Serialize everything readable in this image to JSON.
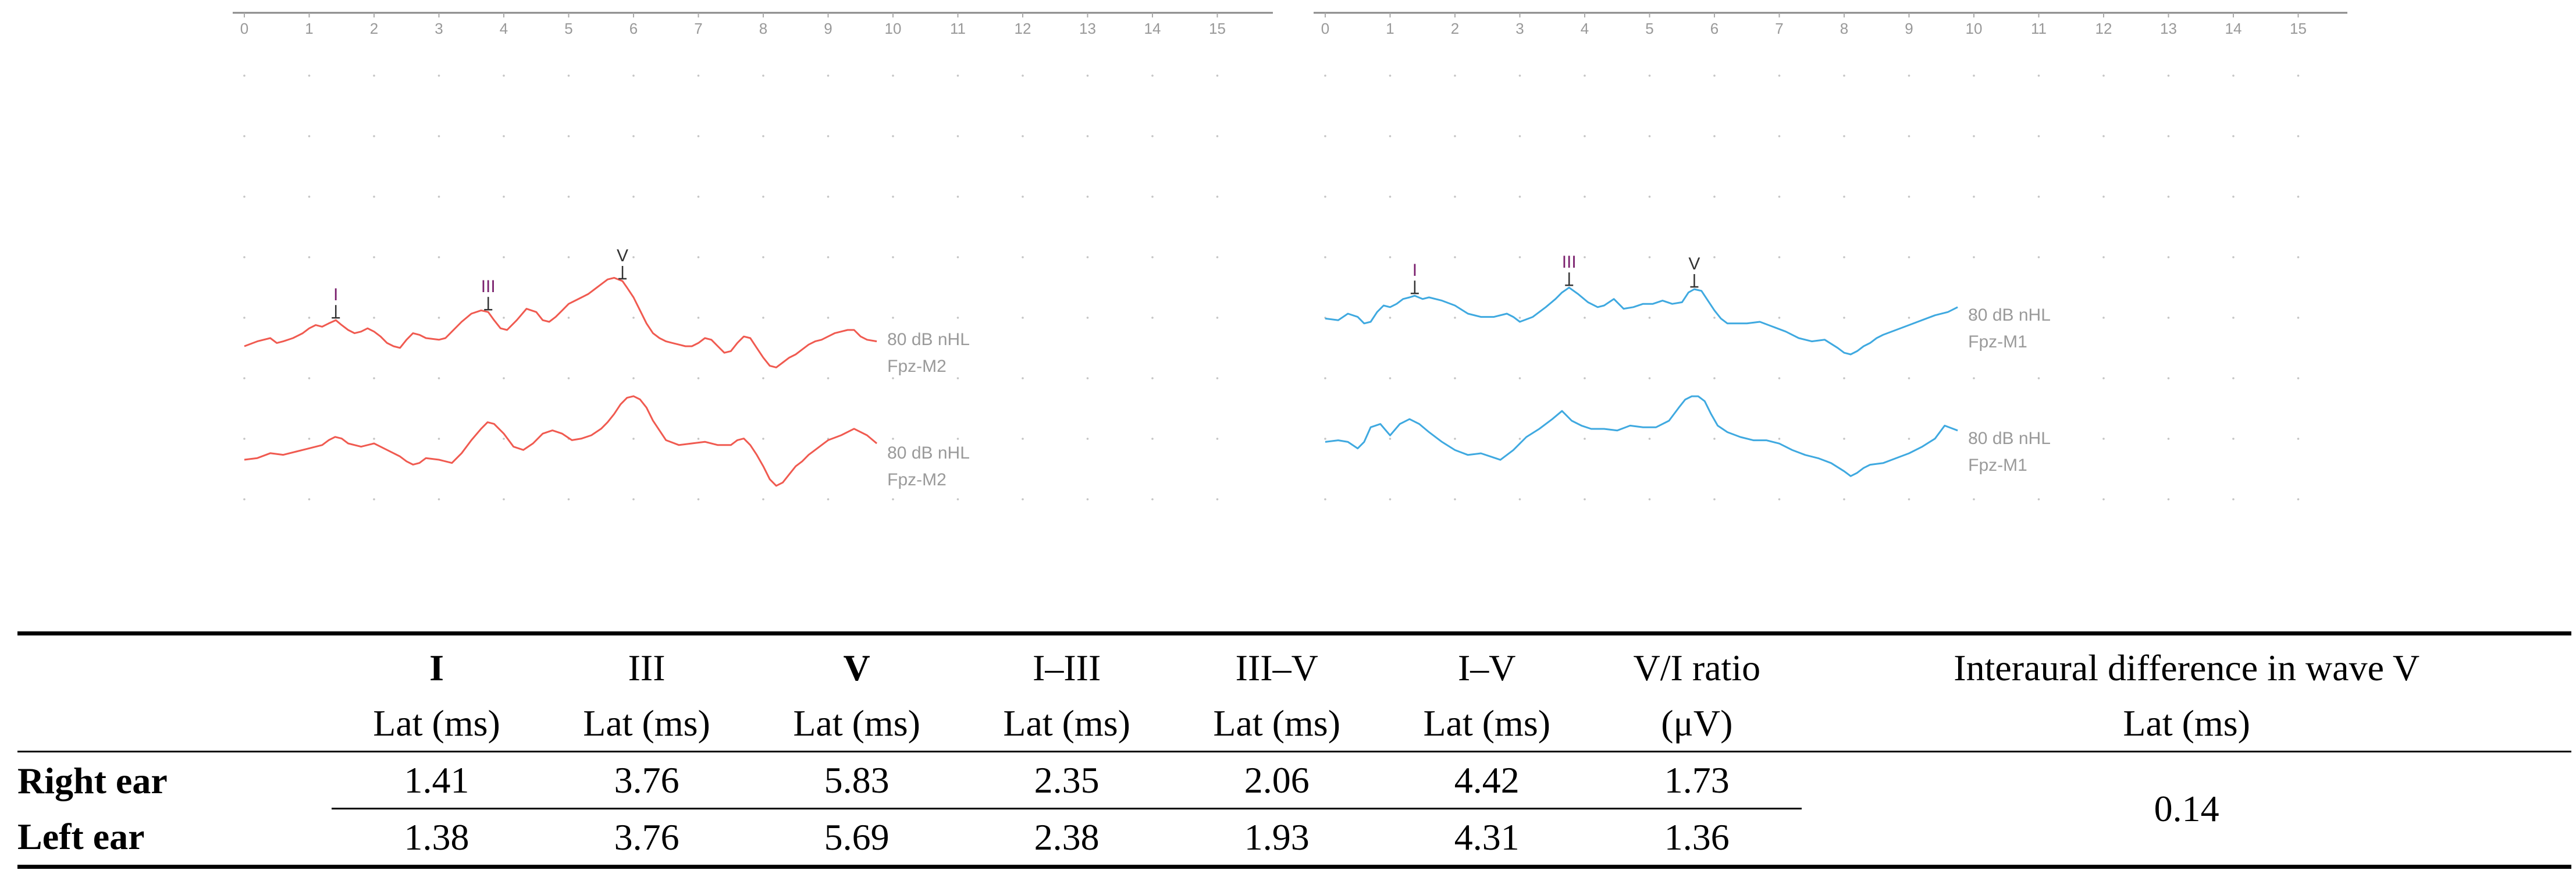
{
  "chart_data": [
    {
      "type": "line",
      "ear": "Right ear",
      "color": "#f05a50",
      "x_axis": {
        "min": 0,
        "max": 16,
        "ticks": [
          0,
          1,
          2,
          3,
          4,
          5,
          6,
          7,
          8,
          9,
          10,
          11,
          12,
          13,
          14,
          15
        ],
        "unit": "ms"
      },
      "series": [
        {
          "name": "80 dB nHL Fpz-M2 (trace 1)",
          "label_lines": [
            "80 dB nHL",
            "Fpz-M2"
          ],
          "x": [
            0.0,
            0.2,
            0.4,
            0.5,
            0.6,
            0.75,
            0.9,
            1.0,
            1.1,
            1.2,
            1.3,
            1.41,
            1.5,
            1.6,
            1.7,
            1.8,
            1.9,
            2.0,
            2.1,
            2.2,
            2.3,
            2.4,
            2.5,
            2.6,
            2.7,
            2.8,
            3.0,
            3.1,
            3.2,
            3.35,
            3.5,
            3.65,
            3.76,
            3.85,
            3.95,
            4.05,
            4.2,
            4.35,
            4.5,
            4.6,
            4.7,
            4.8,
            4.9,
            5.0,
            5.1,
            5.2,
            5.3,
            5.4,
            5.5,
            5.6,
            5.7,
            5.83,
            5.9,
            6.0,
            6.1,
            6.2,
            6.3,
            6.4,
            6.5,
            6.6,
            6.7,
            6.8,
            6.9,
            7.0,
            7.1,
            7.2,
            7.3,
            7.4,
            7.5,
            7.6,
            7.7,
            7.8,
            7.9,
            8.0,
            8.1,
            8.2,
            8.3,
            8.4,
            8.5,
            8.6,
            8.7,
            8.8,
            8.9,
            9.0,
            9.1,
            9.2,
            9.3,
            9.4,
            9.5,
            9.6,
            9.75
          ],
          "y": [
            0.0,
            0.3,
            0.5,
            0.2,
            0.3,
            0.5,
            0.8,
            1.1,
            1.3,
            1.2,
            1.4,
            1.6,
            1.3,
            1.0,
            0.8,
            0.9,
            1.1,
            0.9,
            0.6,
            0.2,
            0.0,
            -0.1,
            0.4,
            0.8,
            0.7,
            0.5,
            0.4,
            0.5,
            0.9,
            1.5,
            2.0,
            2.2,
            2.1,
            1.6,
            1.1,
            1.0,
            1.6,
            2.3,
            2.1,
            1.6,
            1.5,
            1.8,
            2.2,
            2.6,
            2.8,
            3.0,
            3.2,
            3.5,
            3.8,
            4.1,
            4.2,
            4.0,
            3.6,
            3.0,
            2.2,
            1.4,
            0.8,
            0.5,
            0.3,
            0.2,
            0.1,
            0.0,
            0.0,
            0.2,
            0.5,
            0.4,
            0.0,
            -0.4,
            -0.3,
            0.2,
            0.6,
            0.5,
            -0.1,
            -0.7,
            -1.2,
            -1.3,
            -1.0,
            -0.7,
            -0.5,
            -0.2,
            0.1,
            0.3,
            0.4,
            0.6,
            0.8,
            0.9,
            1.0,
            1.0,
            0.6,
            0.4,
            0.3
          ],
          "markers": [
            {
              "label": "I",
              "x": 1.41,
              "color": "#7a1f6d"
            },
            {
              "label": "III",
              "x": 3.76,
              "color": "#7a1f6d"
            },
            {
              "label": "V",
              "x": 5.83,
              "color": "#333333"
            }
          ]
        },
        {
          "name": "80 dB nHL Fpz-M2 (trace 2)",
          "label_lines": [
            "80 dB nHL",
            "Fpz-M2"
          ],
          "x": [
            0.0,
            0.2,
            0.4,
            0.6,
            0.8,
            1.0,
            1.2,
            1.3,
            1.4,
            1.5,
            1.6,
            1.8,
            2.0,
            2.2,
            2.4,
            2.5,
            2.6,
            2.7,
            2.8,
            3.0,
            3.2,
            3.35,
            3.5,
            3.65,
            3.75,
            3.85,
            4.0,
            4.15,
            4.3,
            4.45,
            4.6,
            4.75,
            4.9,
            5.05,
            5.2,
            5.35,
            5.5,
            5.6,
            5.7,
            5.8,
            5.9,
            6.0,
            6.1,
            6.2,
            6.3,
            6.5,
            6.7,
            6.9,
            7.1,
            7.3,
            7.5,
            7.6,
            7.7,
            7.8,
            7.9,
            8.0,
            8.1,
            8.2,
            8.3,
            8.4,
            8.5,
            8.6,
            8.7,
            8.8,
            8.9,
            9.0,
            9.2,
            9.4,
            9.6,
            9.75
          ],
          "y": [
            0.0,
            0.1,
            0.4,
            0.3,
            0.5,
            0.7,
            0.9,
            1.2,
            1.4,
            1.3,
            1.0,
            0.8,
            1.0,
            0.6,
            0.2,
            -0.1,
            -0.3,
            -0.2,
            0.1,
            0.0,
            -0.2,
            0.4,
            1.2,
            1.9,
            2.3,
            2.2,
            1.6,
            0.8,
            0.6,
            1.0,
            1.6,
            1.8,
            1.6,
            1.2,
            1.3,
            1.5,
            1.9,
            2.3,
            2.8,
            3.4,
            3.8,
            3.9,
            3.7,
            3.2,
            2.4,
            1.2,
            0.9,
            1.0,
            1.1,
            0.9,
            0.9,
            1.2,
            1.3,
            0.9,
            0.3,
            -0.4,
            -1.2,
            -1.6,
            -1.4,
            -0.9,
            -0.4,
            -0.1,
            0.3,
            0.6,
            0.9,
            1.2,
            1.5,
            1.9,
            1.5,
            1.0
          ],
          "markers": []
        }
      ]
    },
    {
      "type": "line",
      "ear": "Left ear",
      "color": "#3fa9e0",
      "x_axis": {
        "min": 0,
        "max": 16,
        "ticks": [
          0,
          1,
          2,
          3,
          4,
          5,
          6,
          7,
          8,
          9,
          10,
          11,
          12,
          13,
          14,
          15
        ],
        "unit": "ms"
      },
      "series": [
        {
          "name": "80 dB nHL Fpz-M1 (trace 1)",
          "label_lines": [
            "80 dB nHL",
            "Fpz-M1"
          ],
          "x": [
            0.0,
            0.2,
            0.35,
            0.5,
            0.6,
            0.7,
            0.8,
            0.9,
            1.0,
            1.1,
            1.2,
            1.3,
            1.38,
            1.5,
            1.6,
            1.8,
            2.0,
            2.2,
            2.4,
            2.6,
            2.8,
            2.9,
            3.0,
            3.2,
            3.4,
            3.55,
            3.65,
            3.76,
            3.9,
            4.05,
            4.2,
            4.3,
            4.45,
            4.6,
            4.75,
            4.9,
            5.05,
            5.2,
            5.35,
            5.5,
            5.6,
            5.69,
            5.8,
            5.9,
            6.0,
            6.1,
            6.2,
            6.3,
            6.5,
            6.7,
            6.9,
            7.1,
            7.3,
            7.5,
            7.7,
            7.9,
            8.0,
            8.1,
            8.2,
            8.3,
            8.4,
            8.5,
            8.6,
            8.8,
            9.0,
            9.2,
            9.4,
            9.6,
            9.75
          ],
          "y": [
            0.2,
            0.1,
            0.5,
            0.3,
            -0.1,
            0.0,
            0.6,
            1.0,
            0.9,
            1.1,
            1.4,
            1.5,
            1.6,
            1.4,
            1.5,
            1.3,
            1.0,
            0.5,
            0.3,
            0.3,
            0.5,
            0.3,
            0.0,
            0.3,
            0.9,
            1.4,
            1.8,
            2.1,
            1.7,
            1.2,
            0.9,
            1.0,
            1.4,
            0.8,
            0.9,
            1.1,
            1.1,
            1.3,
            1.1,
            1.2,
            1.8,
            2.0,
            1.9,
            1.3,
            0.7,
            0.2,
            -0.1,
            -0.1,
            -0.1,
            0.0,
            -0.3,
            -0.6,
            -1.0,
            -1.2,
            -1.1,
            -1.6,
            -1.9,
            -2.0,
            -1.8,
            -1.5,
            -1.3,
            -1.0,
            -0.8,
            -0.5,
            -0.2,
            0.1,
            0.4,
            0.6,
            0.9
          ],
          "markers": [
            {
              "label": "I",
              "x": 1.38,
              "color": "#7a1f6d"
            },
            {
              "label": "III",
              "x": 3.76,
              "color": "#7a1f6d"
            },
            {
              "label": "V",
              "x": 5.69,
              "color": "#333333"
            }
          ]
        },
        {
          "name": "80 dB nHL Fpz-M1 (trace 2)",
          "label_lines": [
            "80 dB nHL",
            "Fpz-M1"
          ],
          "x": [
            0.0,
            0.2,
            0.35,
            0.5,
            0.6,
            0.7,
            0.85,
            1.0,
            1.15,
            1.3,
            1.45,
            1.6,
            1.8,
            2.0,
            2.2,
            2.4,
            2.55,
            2.7,
            2.9,
            3.1,
            3.3,
            3.5,
            3.65,
            3.8,
            3.95,
            4.1,
            4.3,
            4.5,
            4.7,
            4.9,
            5.1,
            5.3,
            5.45,
            5.55,
            5.65,
            5.75,
            5.85,
            5.95,
            6.05,
            6.2,
            6.4,
            6.6,
            6.8,
            7.0,
            7.2,
            7.4,
            7.6,
            7.8,
            8.0,
            8.1,
            8.2,
            8.3,
            8.4,
            8.6,
            8.8,
            9.0,
            9.2,
            9.4,
            9.55,
            9.75
          ],
          "y": [
            0.2,
            0.3,
            0.2,
            -0.2,
            0.2,
            1.1,
            1.3,
            0.6,
            1.3,
            1.6,
            1.3,
            0.8,
            0.2,
            -0.3,
            -0.6,
            -0.5,
            -0.7,
            -0.9,
            -0.3,
            0.5,
            1.0,
            1.6,
            2.1,
            1.5,
            1.2,
            1.0,
            1.0,
            0.9,
            1.2,
            1.1,
            1.1,
            1.5,
            2.3,
            2.8,
            3.0,
            3.0,
            2.7,
            1.9,
            1.2,
            0.8,
            0.5,
            0.3,
            0.3,
            0.1,
            -0.3,
            -0.6,
            -0.8,
            -1.1,
            -1.6,
            -1.9,
            -1.7,
            -1.4,
            -1.2,
            -1.1,
            -0.8,
            -0.5,
            -0.1,
            0.4,
            1.2,
            0.9
          ],
          "markers": []
        }
      ]
    }
  ],
  "table": {
    "headers": [
      {
        "line1": "I",
        "line2": "Lat (ms)",
        "bold": true
      },
      {
        "line1": "III",
        "line2": "Lat (ms)",
        "bold": false
      },
      {
        "line1": "V",
        "line2": "Lat (ms)",
        "bold": true
      },
      {
        "line1": "I–III",
        "line2": "Lat (ms)",
        "bold": false
      },
      {
        "line1": "III–V",
        "line2": "Lat (ms)",
        "bold": false
      },
      {
        "line1": "I–V",
        "line2": "Lat (ms)",
        "bold": false
      },
      {
        "line1": "V/I ratio",
        "line2": "(μV)",
        "bold": false
      }
    ],
    "interaural_header": {
      "line1": "Interaural difference in wave V",
      "line2": "Lat (ms)"
    },
    "rows": [
      {
        "label": "Right ear",
        "values": [
          "1.41",
          "3.76",
          "5.83",
          "2.35",
          "2.06",
          "4.42",
          "1.73"
        ]
      },
      {
        "label": "Left ear",
        "values": [
          "1.38",
          "3.76",
          "5.69",
          "2.38",
          "1.93",
          "4.31",
          "1.36"
        ]
      }
    ],
    "interaural_value": "0.14"
  }
}
